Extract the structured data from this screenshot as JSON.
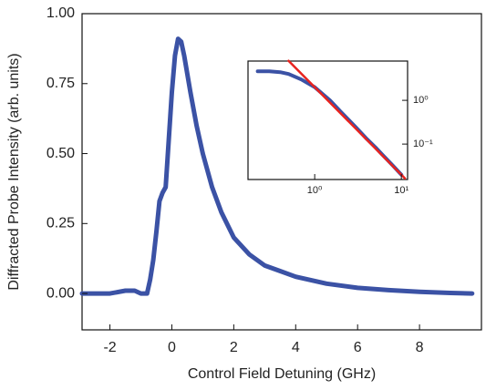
{
  "chart_data": [
    {
      "type": "line",
      "xlabel": "Control Field Detuning (GHz)",
      "ylabel": "Diffracted Probe Intensity (arb. units)",
      "xlim": [
        -2.9,
        10
      ],
      "ylim": [
        -0.13,
        1.0
      ],
      "xticks": [
        -2,
        0,
        2,
        4,
        6,
        8
      ],
      "yticks": [
        {
          "value": 0,
          "label": "0.00"
        },
        {
          "value": 0.25,
          "label": "0.25"
        },
        {
          "value": 0.5,
          "label": "0.50"
        },
        {
          "value": 0.75,
          "label": "0.75"
        },
        {
          "value": 1,
          "label": "1.00"
        }
      ],
      "series": [
        {
          "color": "#3b52a5",
          "x": [
            -2.9,
            -2.5,
            -2,
            -1.5,
            -1.2,
            -1,
            -0.8,
            -0.7,
            -0.6,
            -0.5,
            -0.4,
            -0.3,
            -0.2,
            -0.1,
            0,
            0.1,
            0.2,
            0.3,
            0.4,
            0.6,
            0.8,
            1,
            1.3,
            1.6,
            2,
            2.5,
            3,
            3.5,
            4,
            5,
            6,
            7,
            8,
            9,
            9.7
          ],
          "values": [
            0,
            0,
            0,
            0.01,
            0.01,
            0,
            0,
            0.05,
            0.12,
            0.22,
            0.33,
            0.36,
            0.38,
            0.55,
            0.72,
            0.85,
            0.91,
            0.9,
            0.85,
            0.72,
            0.6,
            0.5,
            0.38,
            0.29,
            0.2,
            0.14,
            0.1,
            0.08,
            0.06,
            0.035,
            0.02,
            0.012,
            0.006,
            0.002,
            0
          ]
        }
      ]
    },
    {
      "type": "line",
      "xscale": "log",
      "yscale": "log",
      "ytick_side": "right",
      "xlim": [
        0.17,
        11.8
      ],
      "ylim": [
        0.0155,
        7.9
      ],
      "xticks": [
        {
          "value": 1,
          "label": "10⁰"
        },
        {
          "value": 10,
          "label": "10¹"
        }
      ],
      "yticks": [
        {
          "value": 0.1,
          "label": "10⁻¹"
        },
        {
          "value": 1,
          "label": "10⁰"
        }
      ],
      "series": [
        {
          "color": "#3b52a5",
          "x": [
            0.22,
            0.3,
            0.4,
            0.5,
            0.7,
            1,
            1.5,
            2,
            3,
            4,
            5,
            6,
            8,
            10
          ],
          "values": [
            4.6,
            4.6,
            4.4,
            4.0,
            3.0,
            2.0,
            1.0,
            0.55,
            0.24,
            0.13,
            0.085,
            0.058,
            0.032,
            0.02
          ]
        },
        {
          "color": "#e8231f",
          "x": [
            0.5,
            11
          ],
          "values": [
            8,
            0.0165
          ]
        }
      ]
    }
  ]
}
